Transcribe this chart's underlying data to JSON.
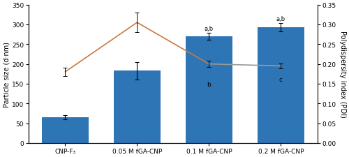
{
  "categories": [
    "CNP-F₃",
    "0.05 M fGA-CNP",
    "0.1 M fGA-CNP",
    "0.2 M fGA-CNP"
  ],
  "bar_values": [
    65,
    183,
    270,
    293
  ],
  "bar_errors": [
    5,
    22,
    8,
    10
  ],
  "bar_color": "#2E75B6",
  "pdi_values": [
    0.18,
    0.305,
    0.2,
    0.195
  ],
  "pdi_errors": [
    0.01,
    0.025,
    0.008,
    0.006
  ],
  "pdi_color_warm": "#C87941",
  "pdi_color_cool": "#999999",
  "ylabel_left": "Particle size (d·nm)",
  "ylabel_right": "Polydispersity index (PDI)",
  "ylim_left": [
    0,
    350
  ],
  "ylim_right": [
    0.0,
    0.35
  ],
  "yticks_left": [
    0,
    50,
    100,
    150,
    200,
    250,
    300,
    350
  ],
  "yticks_right": [
    0.0,
    0.05,
    0.1,
    0.15,
    0.2,
    0.25,
    0.3,
    0.35
  ],
  "figsize": [
    5.0,
    2.26
  ],
  "dpi": 100,
  "background_color": "#ffffff",
  "fontsize_ticks": 6.5,
  "fontsize_labels": 7.0,
  "fontsize_annot": 6.0
}
